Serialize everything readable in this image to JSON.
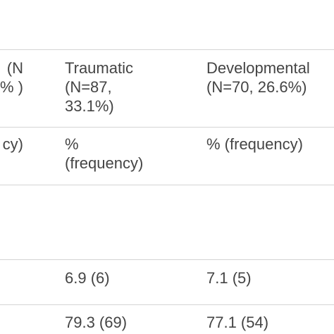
{
  "table": {
    "rows": [
      {
        "cells": [
          [
            "(N",
            "% )"
          ],
          [
            "Traumatic",
            "(N=87,",
            "33.1%)"
          ],
          [
            "Developmental",
            "(N=70, 26.6%)"
          ]
        ]
      },
      {
        "cells": [
          [
            "cy)"
          ],
          [
            "%",
            "(frequency)"
          ],
          [
            "% (frequency)"
          ]
        ]
      },
      {
        "cells": [
          [],
          [],
          []
        ]
      },
      {
        "cells": [
          [],
          [
            "6.9 (6)"
          ],
          [
            "7.1 (5)"
          ]
        ]
      },
      {
        "cells": [
          [],
          [
            "79.3 (69)"
          ],
          [
            "77.1 (54)"
          ]
        ]
      }
    ]
  }
}
